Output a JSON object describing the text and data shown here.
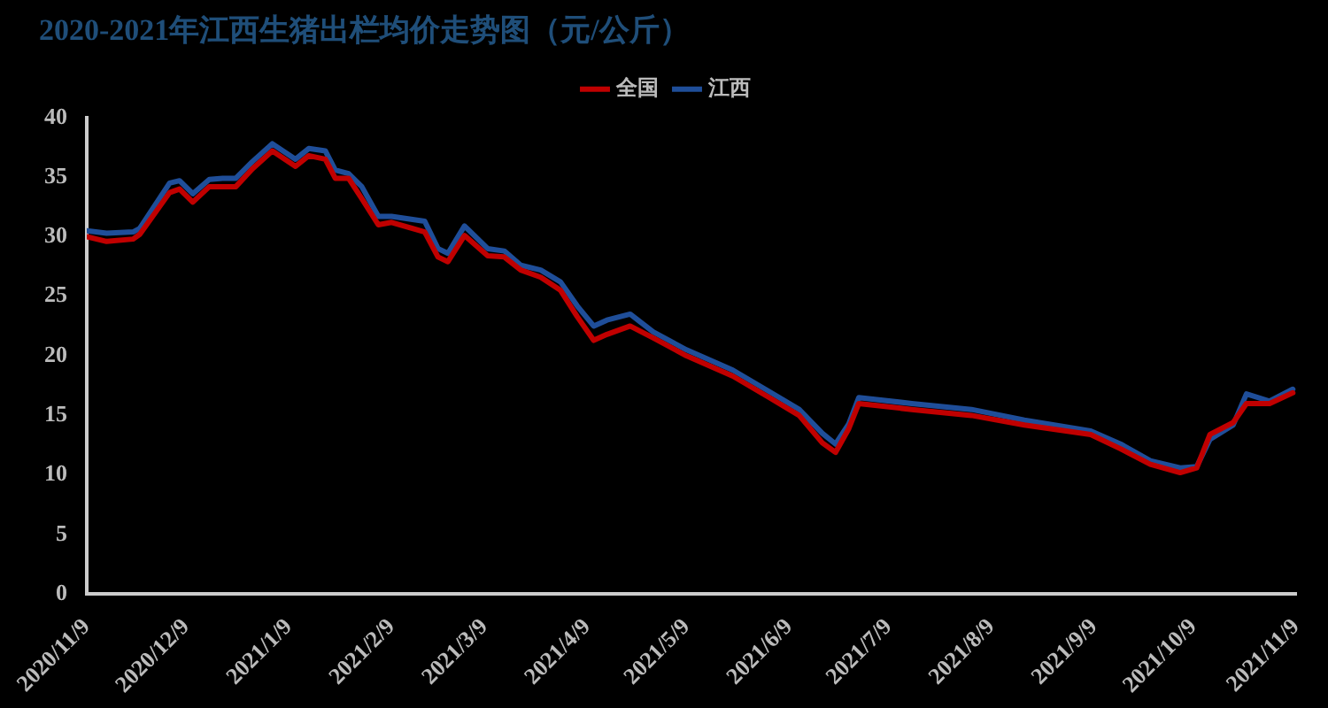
{
  "chart_data": {
    "type": "line",
    "title": "2020-2021年江西生猪出栏均价走势图（元/公斤）",
    "x": [
      "2020-11-09",
      "2020-11-15",
      "2020-11-23",
      "2020-11-25",
      "2020-12-04",
      "2020-12-07",
      "2020-12-11",
      "2020-12-16",
      "2020-12-20",
      "2020-12-24",
      "2020-12-29",
      "2021-01-04",
      "2021-01-11",
      "2021-01-15",
      "2021-01-20",
      "2021-01-23",
      "2021-01-27",
      "2021-01-31",
      "2021-02-05",
      "2021-02-09",
      "2021-02-19",
      "2021-02-23",
      "2021-02-26",
      "2021-03-03",
      "2021-03-10",
      "2021-03-15",
      "2021-03-20",
      "2021-03-26",
      "2021-04-01",
      "2021-04-06",
      "2021-04-11",
      "2021-04-15",
      "2021-04-22",
      "2021-04-29",
      "2021-05-09",
      "2021-05-23",
      "2021-06-03",
      "2021-06-12",
      "2021-06-19",
      "2021-06-23",
      "2021-06-27",
      "2021-06-30",
      "2021-07-16",
      "2021-08-03",
      "2021-08-19",
      "2021-09-08",
      "2021-09-17",
      "2021-09-26",
      "2021-10-05",
      "2021-10-10",
      "2021-10-14",
      "2021-10-21",
      "2021-10-25",
      "2021-11-01",
      "2021-11-08"
    ],
    "series": [
      {
        "name": "全国",
        "color": "#c00000",
        "values": [
          30.0,
          29.6,
          29.8,
          30.2,
          33.7,
          34.0,
          32.9,
          34.2,
          34.2,
          34.2,
          35.7,
          37.2,
          35.9,
          36.8,
          36.5,
          34.9,
          34.9,
          33.2,
          31.0,
          31.2,
          30.4,
          28.3,
          27.9,
          30.1,
          28.4,
          28.3,
          27.2,
          26.6,
          25.5,
          23.3,
          21.3,
          21.8,
          22.5,
          21.5,
          20.0,
          18.3,
          16.5,
          15.0,
          12.7,
          11.9,
          13.9,
          16.0,
          15.5,
          15.0,
          14.2,
          13.4,
          12.2,
          10.9,
          10.2,
          10.6,
          13.4,
          14.4,
          16.0,
          16.0,
          16.9
        ]
      },
      {
        "name": "江西",
        "color": "#1f4e99",
        "values": [
          30.5,
          30.3,
          30.4,
          30.7,
          34.5,
          34.7,
          33.6,
          34.8,
          34.9,
          34.9,
          36.3,
          37.8,
          36.5,
          37.4,
          37.2,
          35.6,
          35.3,
          34.2,
          31.7,
          31.7,
          31.3,
          29.0,
          28.6,
          30.9,
          29.0,
          28.8,
          27.6,
          27.2,
          26.2,
          24.2,
          22.5,
          23.0,
          23.5,
          22.0,
          20.5,
          18.8,
          17.0,
          15.5,
          13.5,
          12.6,
          14.3,
          16.5,
          16.0,
          15.5,
          14.6,
          13.7,
          12.6,
          11.2,
          10.6,
          10.7,
          13.0,
          14.2,
          16.8,
          16.2,
          17.2
        ]
      }
    ],
    "xlim": [
      "2020-11-09",
      "2021-11-09"
    ],
    "xticks": [
      {
        "value": "2020-11-09",
        "label": "2020/11/9"
      },
      {
        "value": "2020-12-09",
        "label": "2020/12/9"
      },
      {
        "value": "2021-01-09",
        "label": "2021/1/9"
      },
      {
        "value": "2021-02-09",
        "label": "2021/2/9"
      },
      {
        "value": "2021-03-09",
        "label": "2021/3/9"
      },
      {
        "value": "2021-04-09",
        "label": "2021/4/9"
      },
      {
        "value": "2021-05-09",
        "label": "2021/5/9"
      },
      {
        "value": "2021-06-09",
        "label": "2021/6/9"
      },
      {
        "value": "2021-07-09",
        "label": "2021/7/9"
      },
      {
        "value": "2021-08-09",
        "label": "2021/8/9"
      },
      {
        "value": "2021-09-09",
        "label": "2021/9/9"
      },
      {
        "value": "2021-10-09",
        "label": "2021/10/9"
      },
      {
        "value": "2021-11-09",
        "label": "2021/11/9"
      }
    ],
    "ylim": [
      0,
      40
    ],
    "yticks": [
      0,
      5,
      10,
      15,
      20,
      25,
      30,
      35,
      40
    ],
    "grid": false,
    "legend": "top",
    "marker": "none",
    "line_style": "solid"
  }
}
